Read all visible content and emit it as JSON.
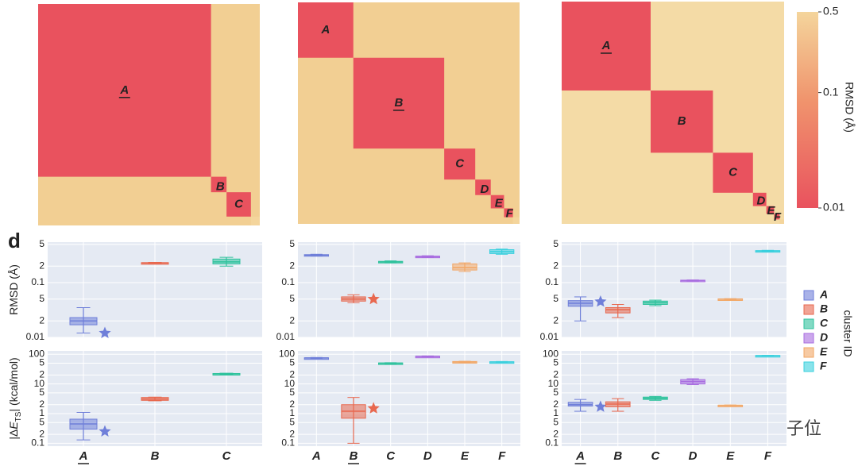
{
  "heatmaps": [
    {
      "blocks": [
        {
          "label": "A",
          "size": 78
        },
        {
          "label": "B",
          "size": 7
        },
        {
          "label": "C",
          "size": 11
        },
        {
          "label": null,
          "size": 4
        }
      ],
      "underline": 0
    },
    {
      "blocks": [
        {
          "label": "A",
          "size": 25
        },
        {
          "label": "B",
          "size": 41
        },
        {
          "label": "C",
          "size": 14
        },
        {
          "label": "D",
          "size": 7
        },
        {
          "label": "E",
          "size": 6
        },
        {
          "label": "F",
          "size": 4
        },
        {
          "label": null,
          "size": 3
        }
      ],
      "underline": 1
    },
    {
      "blocks": [
        {
          "label": "A",
          "size": 40
        },
        {
          "label": "B",
          "size": 28
        },
        {
          "label": "C",
          "size": 18
        },
        {
          "label": "D",
          "size": 6
        },
        {
          "label": "E",
          "size": 3.5
        },
        {
          "label": "F",
          "size": 2.5
        },
        {
          "label": null,
          "size": 2
        }
      ],
      "underline": 0
    }
  ],
  "colorbar": {
    "label": "RMSD (Å)",
    "lim": [
      0.01,
      0.5
    ],
    "ticks": [
      0.5,
      0.1,
      0.01
    ],
    "log": true,
    "colors": [
      "#e9525e",
      "#f4d59c"
    ]
  },
  "panel_label": "d",
  "chart_data": [
    {
      "type": "box",
      "categories": [
        "A",
        "B",
        "C"
      ],
      "underline": 0,
      "panels": [
        {
          "ylabel": [
            "RMSD (Å)"
          ],
          "log": true,
          "ylim": [
            0.01,
            0.55
          ],
          "yticks": [
            {
              "value": 0.5,
              "label": "5"
            },
            {
              "value": 0.2,
              "label": "2"
            },
            0.1,
            {
              "value": 0.05,
              "label": "5"
            },
            {
              "value": 0.02,
              "label": "2"
            },
            0.01
          ],
          "boxes": [
            [
              0.012,
              0.017,
              0.02,
              0.023,
              0.035
            ],
            [
              0.225,
              0.228,
              0.23,
              0.232,
              0.235
            ],
            [
              0.2,
              0.22,
              0.24,
              0.27,
              0.29
            ]
          ],
          "stars": [
            0.012,
            null,
            null
          ]
        },
        {
          "ylabel": [
            "|Δ",
            "E",
            "TS",
            "| (kcal/mol)"
          ],
          "log": true,
          "ylim": [
            0.08,
            130
          ],
          "yticks": [
            100,
            {
              "value": 50,
              "label": "5"
            },
            {
              "value": 20,
              "label": "2"
            },
            10,
            {
              "value": 5,
              "label": "5"
            },
            {
              "value": 2,
              "label": "2"
            },
            1,
            {
              "value": 0.5,
              "label": "5"
            },
            {
              "value": 0.2,
              "label": "2"
            },
            0.1
          ],
          "boxes": [
            [
              0.13,
              0.3,
              0.45,
              0.65,
              1.1
            ],
            [
              2.7,
              2.8,
              3.1,
              3.5,
              3.6
            ],
            [
              21,
              21.5,
              22,
              22.5,
              23
            ]
          ],
          "stars": [
            0.25,
            null,
            null
          ]
        }
      ]
    },
    {
      "type": "box",
      "categories": [
        "A",
        "B",
        "C",
        "D",
        "E",
        "F"
      ],
      "underline": 1,
      "panels": [
        {
          "log": true,
          "ylim": [
            0.01,
            0.55
          ],
          "yticks": [
            {
              "value": 0.5,
              "label": "5"
            },
            {
              "value": 0.2,
              "label": "2"
            },
            0.1,
            {
              "value": 0.05,
              "label": "5"
            },
            {
              "value": 0.02,
              "label": "2"
            },
            0.01
          ],
          "boxes": [
            [
              0.31,
              0.315,
              0.32,
              0.325,
              0.33
            ],
            [
              0.043,
              0.046,
              0.05,
              0.055,
              0.06
            ],
            [
              0.23,
              0.235,
              0.24,
              0.245,
              0.25
            ],
            [
              0.29,
              0.295,
              0.3,
              0.305,
              0.31
            ],
            [
              0.16,
              0.17,
              0.19,
              0.22,
              0.23
            ],
            [
              0.33,
              0.34,
              0.37,
              0.4,
              0.41
            ]
          ],
          "stars": [
            null,
            0.05,
            null,
            null,
            null,
            null
          ]
        },
        {
          "log": true,
          "ylim": [
            0.08,
            130
          ],
          "yticks": [
            100,
            {
              "value": 50,
              "label": "5"
            },
            {
              "value": 20,
              "label": "2"
            },
            10,
            {
              "value": 5,
              "label": "5"
            },
            {
              "value": 2,
              "label": "2"
            },
            1,
            {
              "value": 0.5,
              "label": "5"
            },
            {
              "value": 0.2,
              "label": "2"
            },
            0.1
          ],
          "boxes": [
            [
              72,
              74,
              75,
              76,
              78
            ],
            [
              0.1,
              0.7,
              1.2,
              2,
              3.5
            ],
            [
              48,
              49,
              50,
              51,
              52
            ],
            [
              82,
              84,
              85,
              86,
              88
            ],
            [
              52,
              53,
              55,
              57,
              58
            ],
            [
              53,
              54,
              55,
              56,
              57
            ]
          ],
          "stars": [
            null,
            1.5,
            null,
            null,
            null,
            null
          ]
        }
      ]
    },
    {
      "type": "box",
      "categories": [
        "A",
        "B",
        "C",
        "D",
        "E",
        "F"
      ],
      "underline": 0,
      "panels": [
        {
          "log": true,
          "ylim": [
            0.01,
            0.55
          ],
          "yticks": [
            {
              "value": 0.5,
              "label": "5"
            },
            {
              "value": 0.2,
              "label": "2"
            },
            0.1,
            {
              "value": 0.05,
              "label": "5"
            },
            {
              "value": 0.02,
              "label": "2"
            },
            0.01
          ],
          "boxes": [
            [
              0.02,
              0.037,
              0.042,
              0.047,
              0.055
            ],
            [
              0.023,
              0.028,
              0.032,
              0.035,
              0.04
            ],
            [
              0.038,
              0.04,
              0.043,
              0.046,
              0.048
            ],
            [
              0.108,
              0.109,
              0.11,
              0.111,
              0.112
            ],
            [
              0.049,
              0.0495,
              0.05,
              0.0505,
              0.051
            ],
            [
              0.37,
              0.375,
              0.38,
              0.385,
              0.39
            ]
          ],
          "stars": [
            0.045,
            null,
            null,
            null,
            null,
            null
          ]
        },
        {
          "log": true,
          "ylim": [
            0.08,
            130
          ],
          "yticks": [
            100,
            {
              "value": 50,
              "label": "5"
            },
            {
              "value": 20,
              "label": "2"
            },
            10,
            {
              "value": 5,
              "label": "5"
            },
            {
              "value": 2,
              "label": "2"
            },
            1,
            {
              "value": 0.5,
              "label": "5"
            },
            {
              "value": 0.2,
              "label": "2"
            },
            0.1
          ],
          "boxes": [
            [
              1.2,
              1.8,
              2,
              2.4,
              3
            ],
            [
              1.2,
              1.7,
              2.1,
              2.5,
              3.2
            ],
            [
              2.8,
              3,
              3.3,
              3.6,
              3.8
            ],
            [
              9.5,
              10,
              12,
              14,
              15
            ],
            [
              1.85,
              1.88,
              1.9,
              1.92,
              1.95
            ],
            [
              88,
              89,
              90,
              91,
              92
            ]
          ],
          "stars": [
            1.7,
            null,
            null,
            null,
            null,
            null
          ]
        }
      ]
    }
  ],
  "legend": {
    "title": "cluster ID",
    "series": [
      {
        "name": "A",
        "color": "#6f7fd9"
      },
      {
        "name": "B",
        "color": "#e8684f"
      },
      {
        "name": "C",
        "color": "#2ec29c"
      },
      {
        "name": "D",
        "color": "#a86ce0"
      },
      {
        "name": "E",
        "color": "#f2a766"
      },
      {
        "name": "F",
        "color": "#3ad0de"
      }
    ]
  },
  "watermark": "量子位"
}
